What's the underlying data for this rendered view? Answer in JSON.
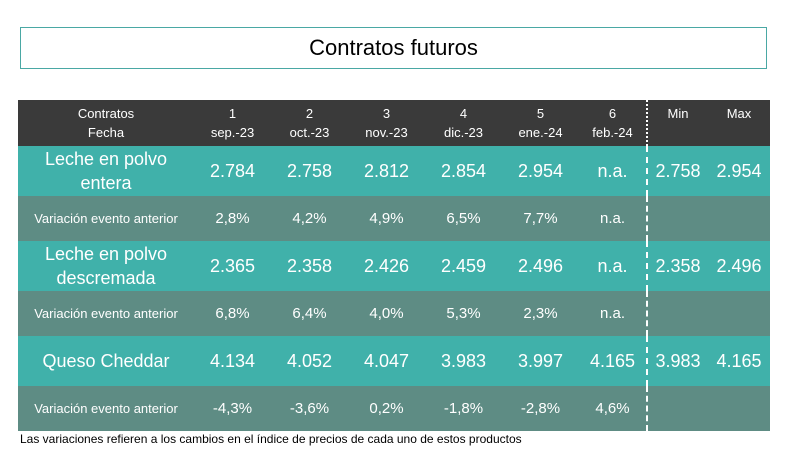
{
  "title": "Contratos futuros",
  "header": {
    "row1": [
      "Contratos",
      "1",
      "2",
      "3",
      "4",
      "5",
      "6",
      "Min",
      "Max"
    ],
    "row2": [
      "Fecha",
      "sep.-23",
      "oct.-23",
      "nov.-23",
      "dic.-23",
      "ene.-24",
      "feb.-24",
      "",
      ""
    ]
  },
  "rows": [
    {
      "label_line1": "Leche en polvo",
      "label_line2": "entera",
      "values": [
        "2.784",
        "2.758",
        "2.812",
        "2.854",
        "2.954",
        "n.a.",
        "2.758",
        "2.954"
      ]
    },
    {
      "label": "Variación evento anterior",
      "values": [
        "2,8%",
        "4,2%",
        "4,9%",
        "6,5%",
        "7,7%",
        "n.a.",
        "",
        ""
      ]
    },
    {
      "label_line1": "Leche en polvo",
      "label_line2": "descremada",
      "values": [
        "2.365",
        "2.358",
        "2.426",
        "2.459",
        "2.496",
        "n.a.",
        "2.358",
        "2.496"
      ]
    },
    {
      "label": "Variación evento anterior",
      "values": [
        "6,8%",
        "6,4%",
        "4,0%",
        "5,3%",
        "2,3%",
        "n.a.",
        "",
        ""
      ]
    },
    {
      "label": "Queso Cheddar",
      "values": [
        "4.134",
        "4.052",
        "4.047",
        "3.983",
        "3.997",
        "4.165",
        "3.983",
        "4.165"
      ]
    },
    {
      "label": "Variación evento anterior",
      "values": [
        "-4,3%",
        "-3,6%",
        "0,2%",
        "-1,8%",
        "-2,8%",
        "4,6%",
        "",
        ""
      ]
    }
  ],
  "footnote": "Las variaciones refieren a los cambios en el índice de precios de cada uno de estos productos",
  "colors": {
    "header_bg": "#3a3a3a",
    "main_row_bg": "#40b1aa",
    "var_row_bg": "#5e8c84",
    "title_border": "#4aa8a4"
  }
}
